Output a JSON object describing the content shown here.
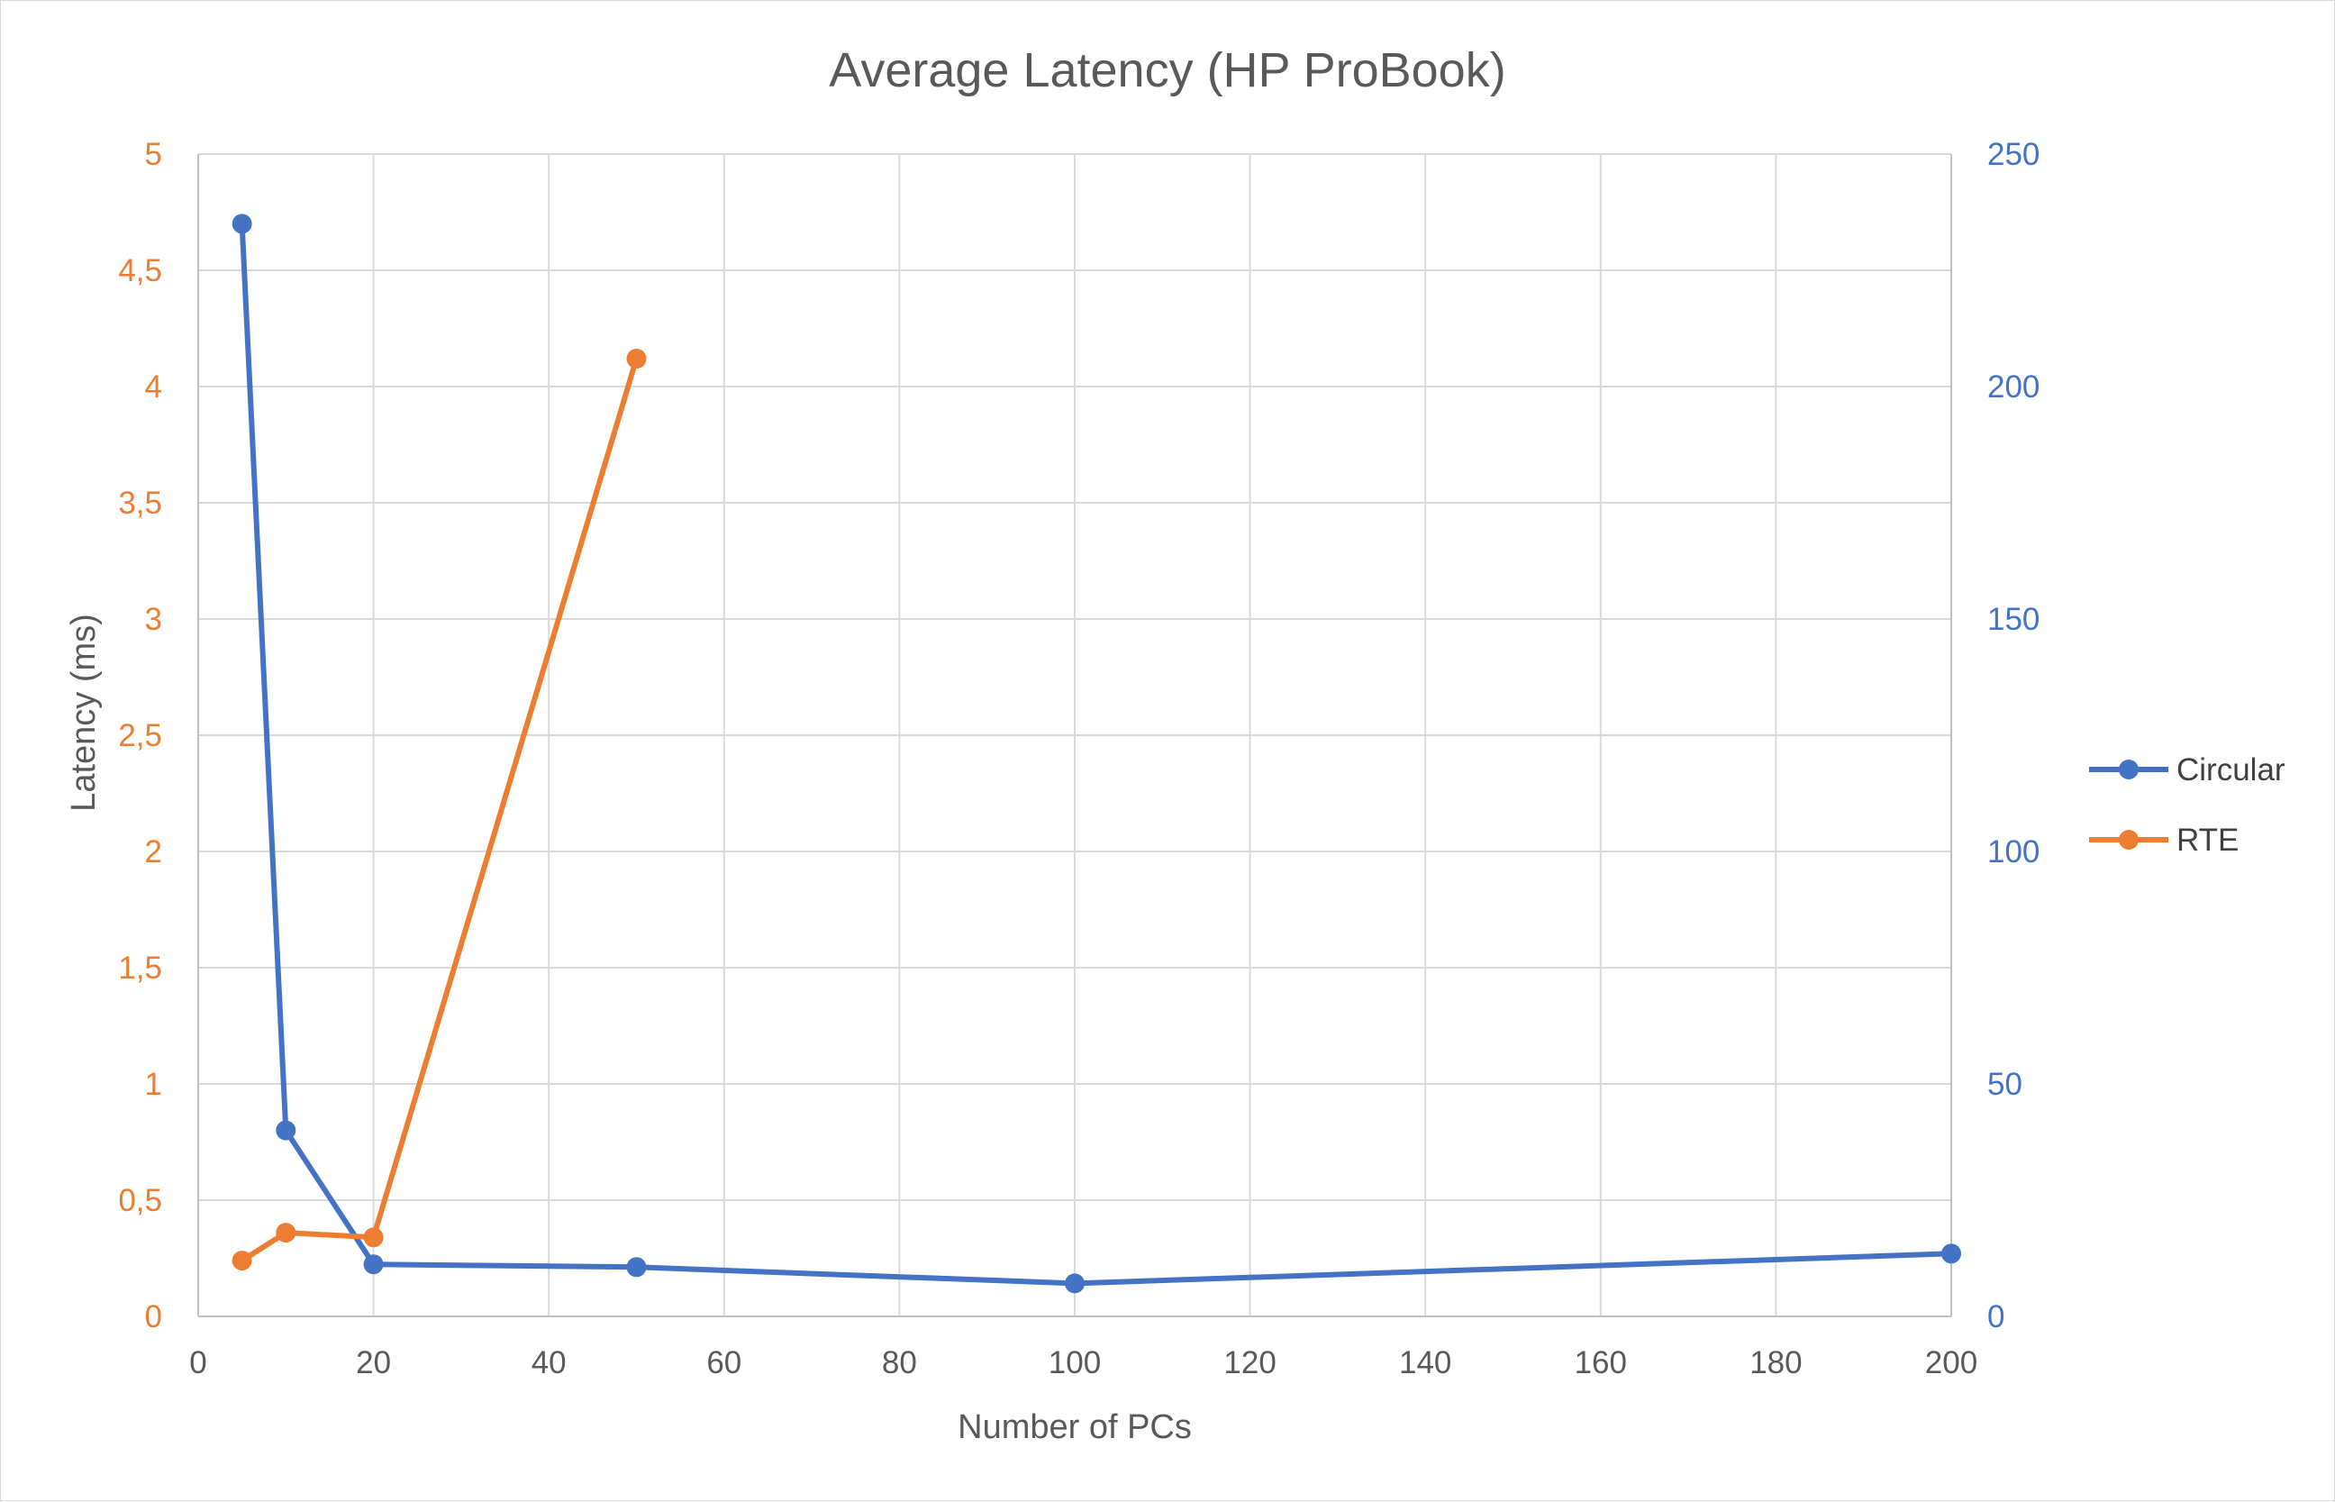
{
  "chart_data": {
    "type": "line",
    "title": "Average Latency (HP ProBook)",
    "xlabel": "Number of PCs",
    "ylabel": "Latency (ms)",
    "y2label": "",
    "xlim": [
      0,
      200
    ],
    "ylim": [
      0,
      5
    ],
    "y2lim": [
      0,
      250
    ],
    "x_ticks": [
      "0",
      "20",
      "40",
      "60",
      "80",
      "100",
      "120",
      "140",
      "160",
      "180",
      "200"
    ],
    "y_ticks": [
      "0",
      "0,5",
      "1",
      "1,5",
      "2",
      "2,5",
      "3",
      "3,5",
      "4",
      "4,5",
      "5"
    ],
    "y2_ticks": [
      "0",
      "50",
      "100",
      "150",
      "200",
      "250"
    ],
    "grid": true,
    "legend_position": "right",
    "series": [
      {
        "name": "Circular",
        "axis": "right",
        "color": "#4472C4",
        "x": [
          5,
          10,
          20,
          50,
          100,
          200
        ],
        "y": [
          235,
          40,
          11.2,
          10.6,
          7.1,
          13.5
        ]
      },
      {
        "name": "RTE",
        "axis": "left",
        "color": "#ED7D31",
        "x": [
          5,
          10,
          20,
          50
        ],
        "y": [
          0.24,
          0.36,
          0.34,
          4.12
        ]
      }
    ]
  }
}
